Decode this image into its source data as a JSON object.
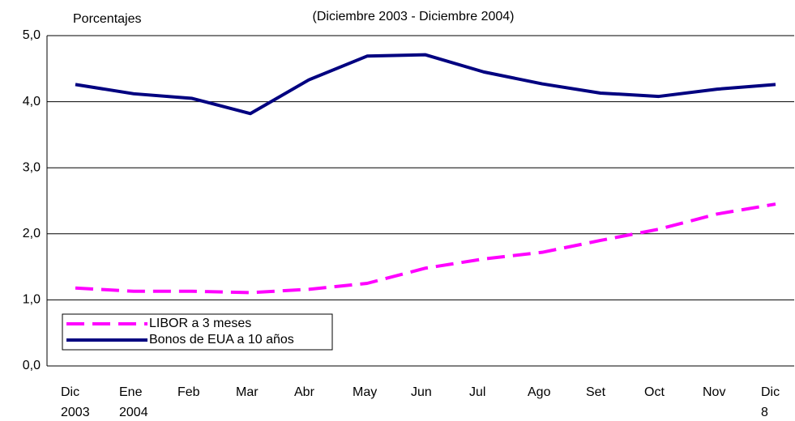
{
  "chart_data": {
    "type": "line",
    "title": "(Diciembre 2003 - Diciembre 2004)",
    "y_label": "Porcentajes",
    "categories": [
      "Dic\n2003",
      "Ene\n2004",
      "Feb",
      "Mar",
      "Abr",
      "May",
      "Jun",
      "Jul",
      "Ago",
      "Set",
      "Oct",
      "Nov",
      "Dic\n8"
    ],
    "series": [
      {
        "name": "LIBOR a 3  meses",
        "color": "#ff00ff",
        "dashed": true,
        "values": [
          1.18,
          1.13,
          1.13,
          1.11,
          1.16,
          1.25,
          1.48,
          1.62,
          1.72,
          1.9,
          2.07,
          2.3,
          2.45
        ]
      },
      {
        "name": "Bonos de EUA a 10 años",
        "color": "#000080",
        "dashed": false,
        "values": [
          4.26,
          4.12,
          4.05,
          3.82,
          4.33,
          4.69,
          4.71,
          4.45,
          4.27,
          4.13,
          4.08,
          4.19,
          4.26
        ]
      }
    ],
    "ylim": [
      0,
      5
    ],
    "yticks": [
      {
        "value": 0,
        "label": "0,0"
      },
      {
        "value": 1,
        "label": "1,0"
      },
      {
        "value": 2,
        "label": "2,0"
      },
      {
        "value": 3,
        "label": "3,0"
      },
      {
        "value": 4,
        "label": "4,0"
      },
      {
        "value": 5,
        "label": "5,0"
      }
    ],
    "grid": true
  }
}
